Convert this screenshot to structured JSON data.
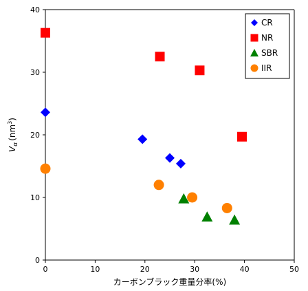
{
  "chart_data": {
    "type": "scatter",
    "xlabel": "カーボンブラック重量分率(%)",
    "ylabel_main": "V",
    "ylabel_sub": "α",
    "ylabel_unit": "(nm",
    "ylabel_unit_sup": "3",
    "ylabel_unit_close": ")",
    "xlim": [
      0,
      50
    ],
    "ylim": [
      0,
      40
    ],
    "xticks": [
      "0",
      "10",
      "20",
      "30",
      "40",
      "50"
    ],
    "yticks": [
      "0",
      "10",
      "20",
      "30",
      "40"
    ],
    "grid": false,
    "legend_position": "top-right",
    "series": [
      {
        "name": "CR",
        "marker": "diamond",
        "color": "#0000ff",
        "points": [
          [
            0,
            23.6
          ],
          [
            19.5,
            19.3
          ],
          [
            25,
            16.3
          ],
          [
            27.2,
            15.4
          ]
        ]
      },
      {
        "name": "NR",
        "marker": "square",
        "color": "#ff0000",
        "points": [
          [
            0,
            36.3
          ],
          [
            23,
            32.5
          ],
          [
            31,
            30.3
          ],
          [
            39.5,
            19.7
          ]
        ]
      },
      {
        "name": "SBR",
        "marker": "triangle",
        "color": "#008000",
        "points": [
          [
            27.8,
            9.8
          ],
          [
            32.5,
            6.9
          ],
          [
            38,
            6.4
          ]
        ]
      },
      {
        "name": "IIR",
        "marker": "circle",
        "color": "#ff8000",
        "points": [
          [
            0,
            14.6
          ],
          [
            22.8,
            12.0
          ],
          [
            29.5,
            10.0
          ],
          [
            36.5,
            8.3
          ]
        ]
      }
    ]
  }
}
